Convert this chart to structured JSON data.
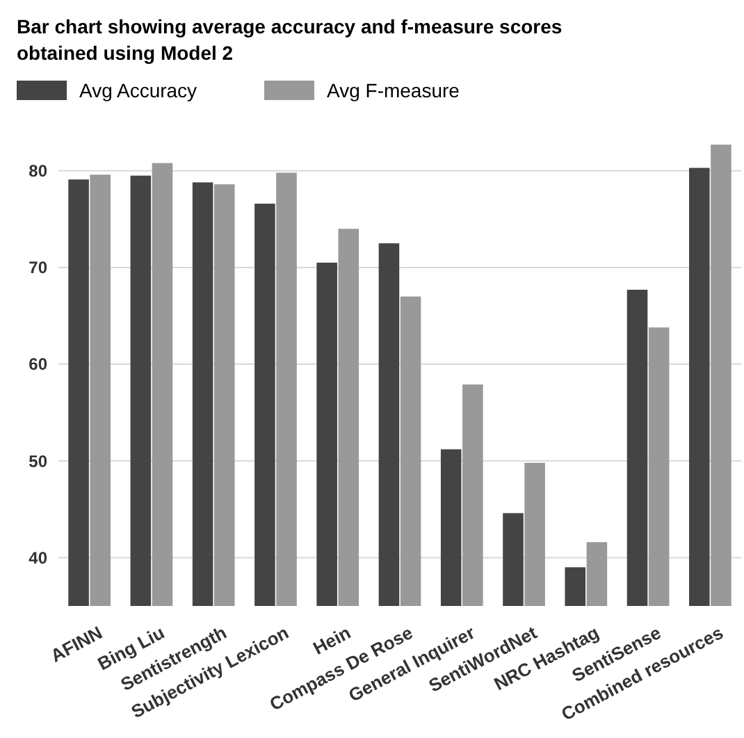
{
  "chart_data": {
    "type": "bar",
    "title": "Bar chart showing average accuracy and f-measure scores obtained using Model 2",
    "categories": [
      "AFINN",
      "Bing Liu",
      "Sentistrength",
      "Subjectivity Lexicon",
      "Hein",
      "Compass De Rose",
      "General Inquirer",
      "SentiWordNet",
      "NRC Hashtag",
      "SentiSense",
      "Combined resources"
    ],
    "series": [
      {
        "name": "Avg Accuracy",
        "color": "#444444",
        "values": [
          79.1,
          79.5,
          78.8,
          76.6,
          70.5,
          72.5,
          51.2,
          44.6,
          39.0,
          67.7,
          80.3
        ]
      },
      {
        "name": "Avg F-measure",
        "color": "#999999",
        "values": [
          79.6,
          80.8,
          78.6,
          79.8,
          74.0,
          67.0,
          57.9,
          49.8,
          41.6,
          63.8,
          82.7
        ]
      }
    ],
    "ylim": [
      35,
      83
    ],
    "yticks": [
      40,
      50,
      60,
      70,
      80
    ],
    "grid": "y",
    "legend": "top left"
  }
}
